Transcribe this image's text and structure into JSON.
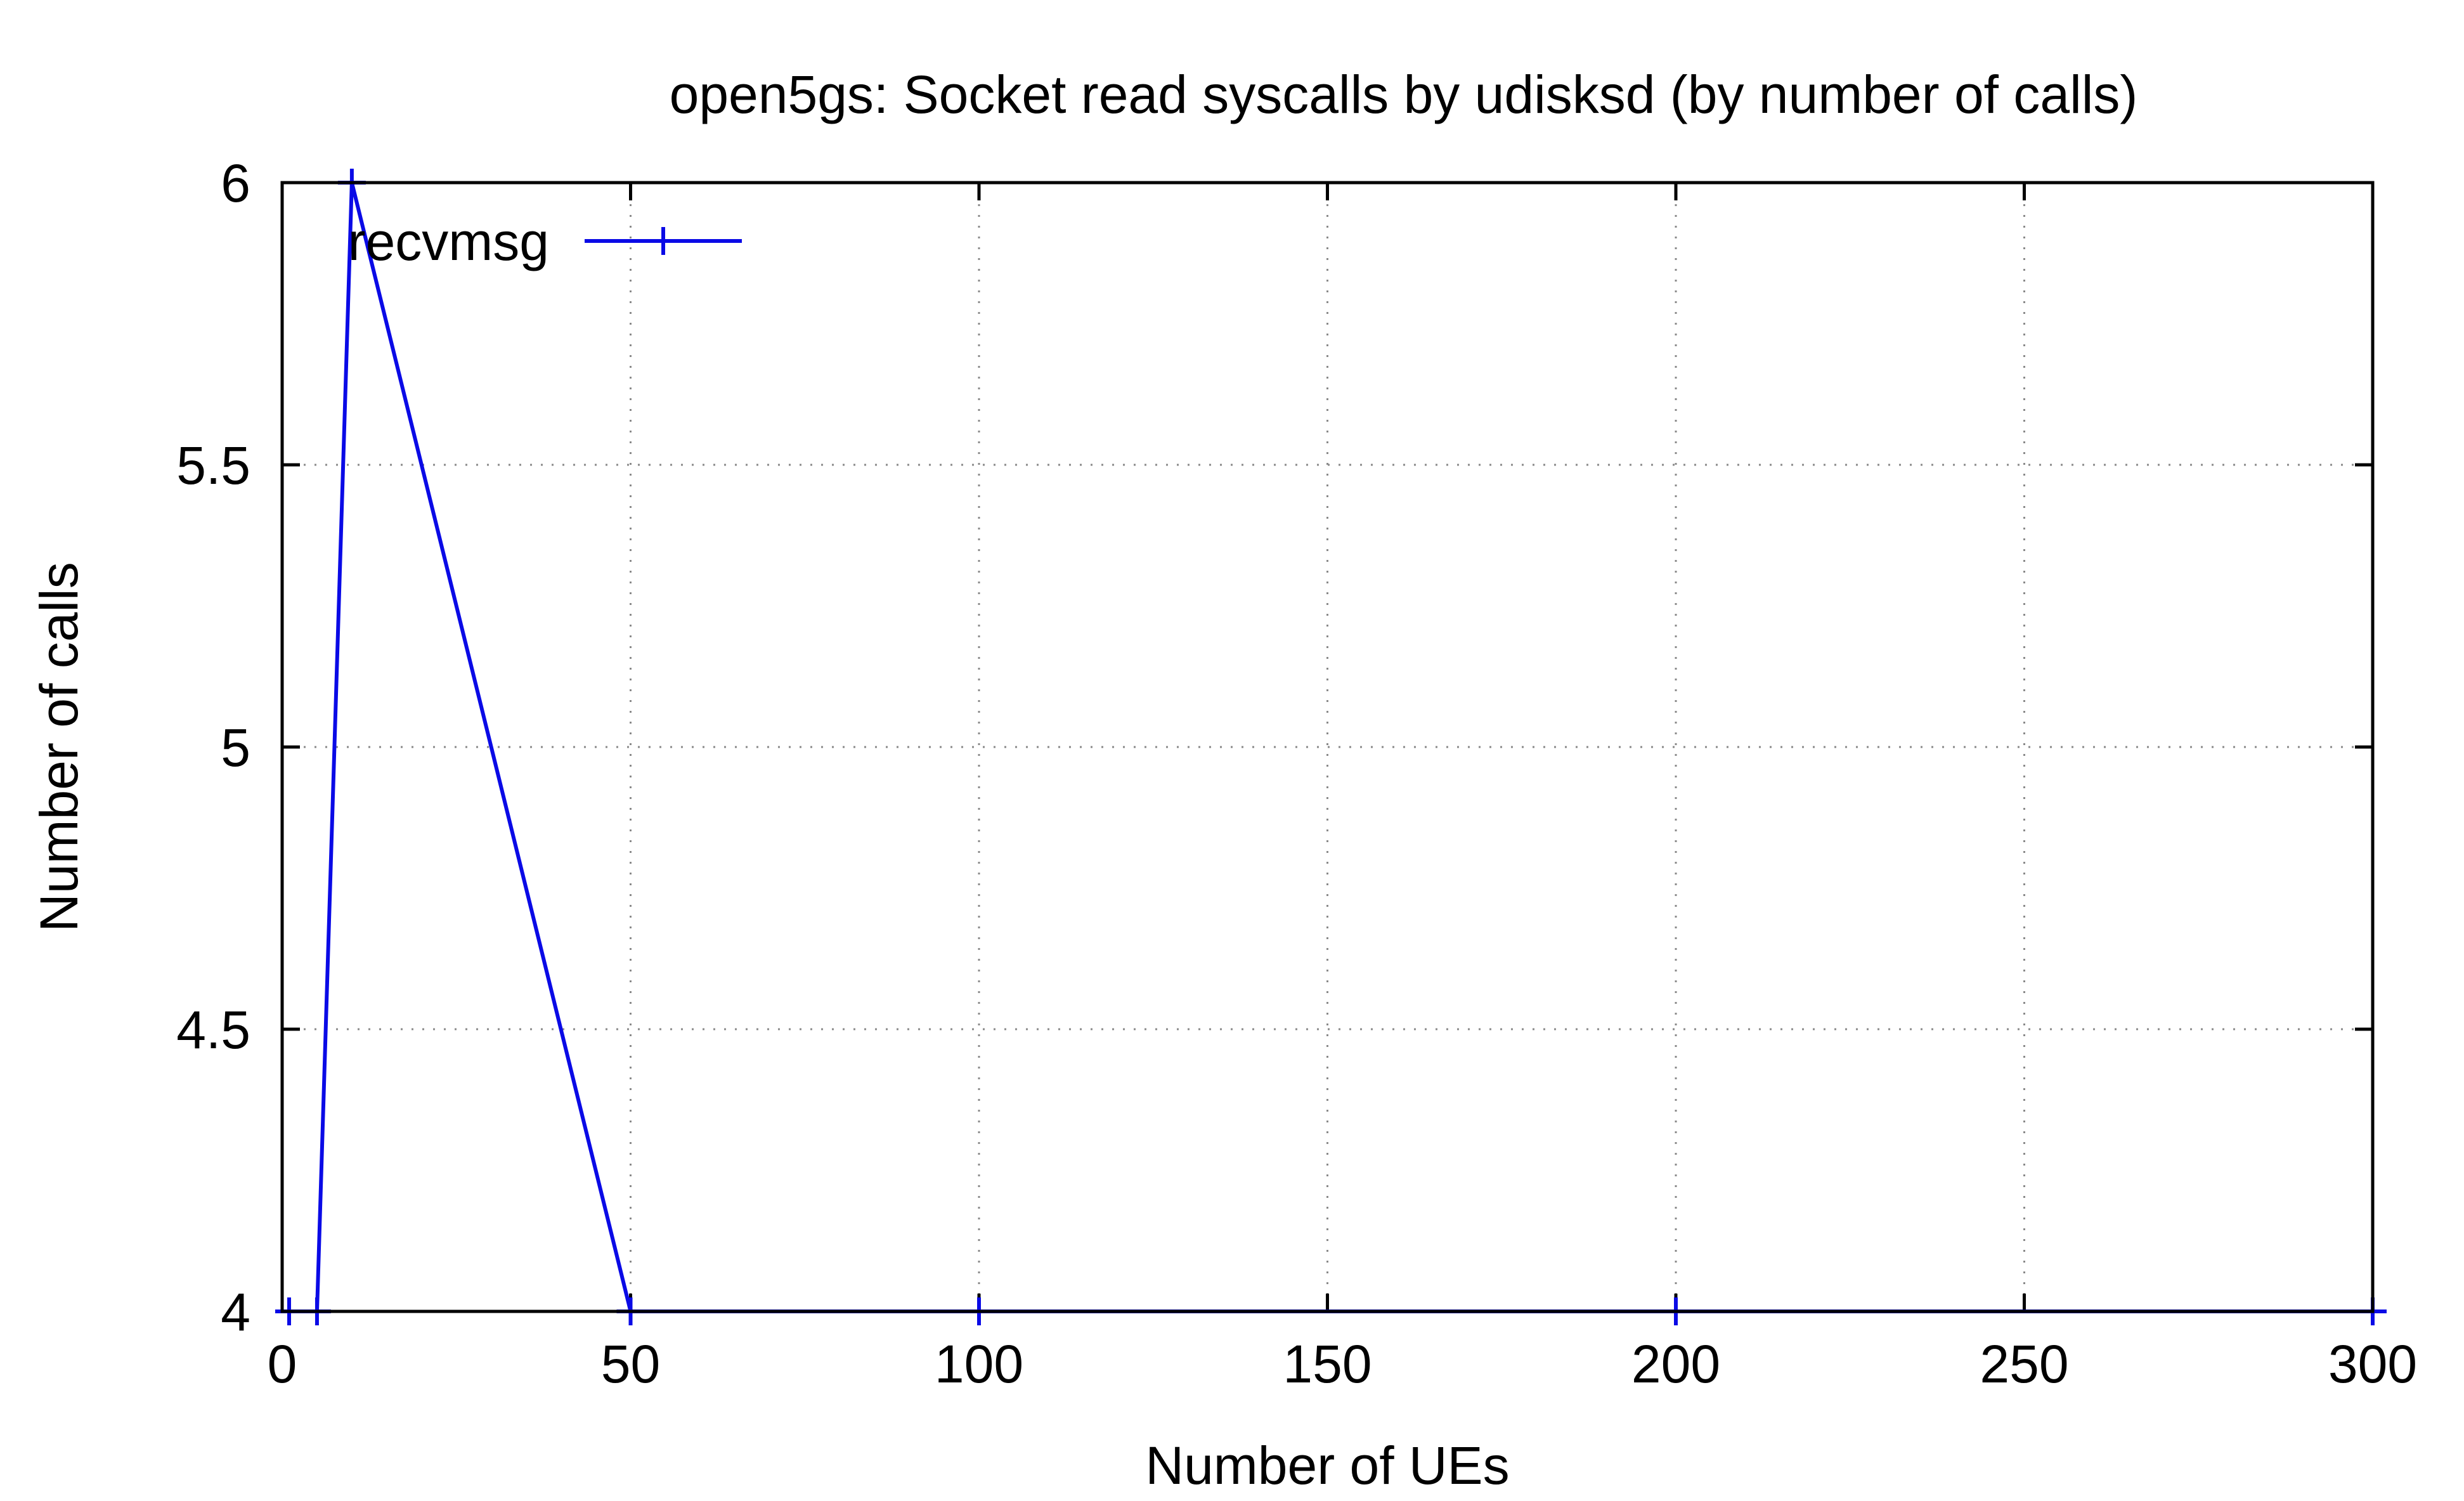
{
  "chart_data": {
    "type": "line",
    "title": "open5gs: Socket read syscalls by udisksd (by number of calls)",
    "xlabel": "Number of UEs",
    "ylabel": "Number of calls",
    "xlim": [
      0,
      300
    ],
    "ylim": [
      4,
      6
    ],
    "xticks": [
      0,
      50,
      100,
      150,
      200,
      250,
      300
    ],
    "yticks": [
      4,
      4.5,
      5,
      5.5,
      6
    ],
    "xtick_labels": [
      "0",
      "50",
      "100",
      "150",
      "200",
      "250",
      "300"
    ],
    "ytick_labels": [
      "4",
      "4.5",
      "5",
      "5.5",
      "6"
    ],
    "grid": true,
    "legend_position": "top-left",
    "series": [
      {
        "name": "recvmsg",
        "color": "#0a0ae6",
        "marker": "plus",
        "x": [
          1,
          5,
          10,
          50,
          100,
          200,
          300
        ],
        "y": [
          4,
          4,
          6,
          4,
          4,
          4,
          4
        ]
      }
    ]
  }
}
